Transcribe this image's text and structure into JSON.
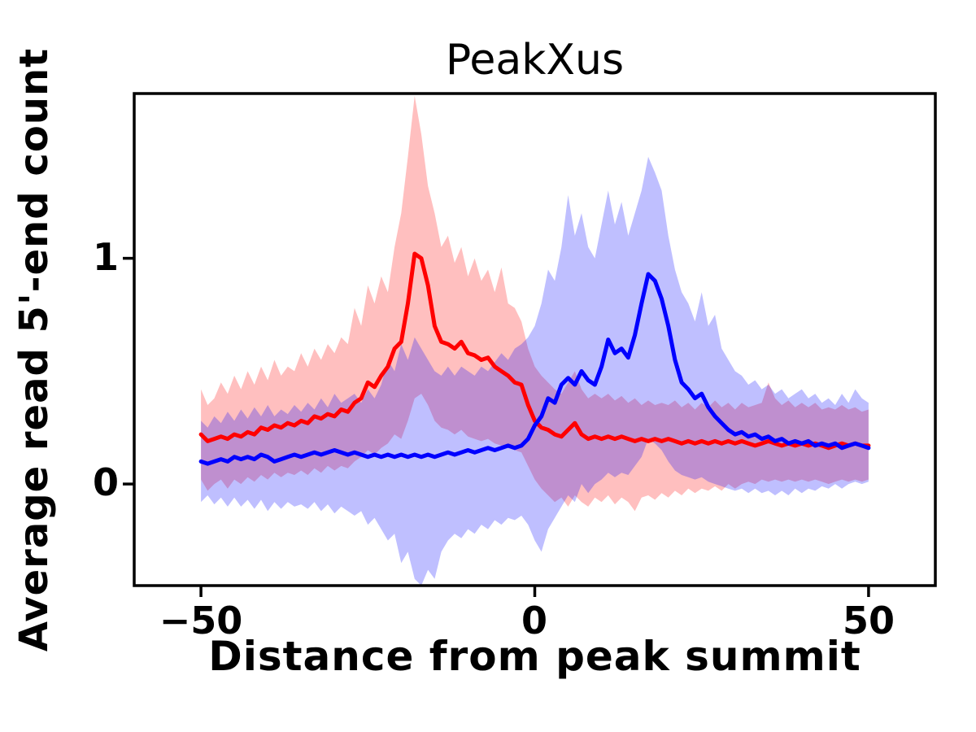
{
  "figure": {
    "background": "#ffffff",
    "axes_color": "#000000"
  },
  "chart_data": {
    "type": "line",
    "title": "PeakXus",
    "xlabel": "Distance from peak summit",
    "ylabel": "Average read 5'-end count",
    "xlim": [
      -60,
      60
    ],
    "ylim": [
      -0.45,
      1.73
    ],
    "grid": false,
    "legend": "none",
    "xticks": {
      "values": [
        -50,
        0,
        50
      ],
      "labels": [
        "−50",
        "0",
        "50"
      ]
    },
    "yticks": {
      "values": [
        0,
        1
      ],
      "labels": [
        "0",
        "1"
      ]
    },
    "x": [
      -50,
      -49,
      -48,
      -47,
      -46,
      -45,
      -44,
      -43,
      -42,
      -41,
      -40,
      -39,
      -38,
      -37,
      -36,
      -35,
      -34,
      -33,
      -32,
      -31,
      -30,
      -29,
      -28,
      -27,
      -26,
      -25,
      -24,
      -23,
      -22,
      -21,
      -20,
      -19,
      -18,
      -17,
      -16,
      -15,
      -14,
      -13,
      -12,
      -11,
      -10,
      -9,
      -8,
      -7,
      -6,
      -5,
      -4,
      -3,
      -2,
      -1,
      0,
      1,
      2,
      3,
      4,
      5,
      6,
      7,
      8,
      9,
      10,
      11,
      12,
      13,
      14,
      15,
      16,
      17,
      18,
      19,
      20,
      21,
      22,
      23,
      24,
      25,
      26,
      27,
      28,
      29,
      30,
      31,
      32,
      33,
      34,
      35,
      36,
      37,
      38,
      39,
      40,
      41,
      42,
      43,
      44,
      45,
      46,
      47,
      48,
      49,
      50
    ],
    "series": [
      {
        "name": "red",
        "color": "#ff0000",
        "band_opacity": 0.25,
        "mean": [
          0.22,
          0.19,
          0.2,
          0.21,
          0.2,
          0.22,
          0.21,
          0.23,
          0.22,
          0.25,
          0.24,
          0.26,
          0.25,
          0.27,
          0.26,
          0.28,
          0.27,
          0.3,
          0.29,
          0.31,
          0.3,
          0.33,
          0.32,
          0.36,
          0.38,
          0.45,
          0.43,
          0.48,
          0.52,
          0.6,
          0.63,
          0.8,
          1.02,
          1.0,
          0.88,
          0.7,
          0.63,
          0.62,
          0.6,
          0.63,
          0.58,
          0.57,
          0.55,
          0.56,
          0.52,
          0.5,
          0.48,
          0.45,
          0.44,
          0.35,
          0.28,
          0.25,
          0.24,
          0.22,
          0.21,
          0.24,
          0.27,
          0.22,
          0.2,
          0.21,
          0.2,
          0.21,
          0.2,
          0.21,
          0.2,
          0.19,
          0.2,
          0.19,
          0.2,
          0.19,
          0.2,
          0.19,
          0.18,
          0.19,
          0.18,
          0.19,
          0.18,
          0.19,
          0.18,
          0.19,
          0.18,
          0.19,
          0.18,
          0.17,
          0.18,
          0.19,
          0.18,
          0.17,
          0.18,
          0.17,
          0.18,
          0.17,
          0.18,
          0.17,
          0.16,
          0.17,
          0.18,
          0.17,
          0.18,
          0.17,
          0.17
        ],
        "upper": [
          0.42,
          0.35,
          0.38,
          0.45,
          0.4,
          0.48,
          0.42,
          0.5,
          0.44,
          0.52,
          0.46,
          0.55,
          0.48,
          0.52,
          0.5,
          0.58,
          0.52,
          0.6,
          0.55,
          0.62,
          0.58,
          0.65,
          0.62,
          0.78,
          0.7,
          0.88,
          0.8,
          0.92,
          0.85,
          1.05,
          1.2,
          1.45,
          1.72,
          1.55,
          1.32,
          1.2,
          1.05,
          1.1,
          0.98,
          1.05,
          0.92,
          1.0,
          0.9,
          0.95,
          0.85,
          0.96,
          0.8,
          0.78,
          0.72,
          0.6,
          0.52,
          0.48,
          0.45,
          0.42,
          0.4,
          0.45,
          0.5,
          0.42,
          0.38,
          0.4,
          0.38,
          0.4,
          0.37,
          0.39,
          0.36,
          0.38,
          0.35,
          0.37,
          0.35,
          0.36,
          0.35,
          0.37,
          0.34,
          0.36,
          0.33,
          0.36,
          0.34,
          0.37,
          0.34,
          0.36,
          0.33,
          0.36,
          0.34,
          0.35,
          0.36,
          0.45,
          0.38,
          0.35,
          0.37,
          0.34,
          0.36,
          0.34,
          0.36,
          0.33,
          0.34,
          0.33,
          0.35,
          0.33,
          0.34,
          0.32,
          0.33
        ],
        "lower": [
          0.02,
          -0.03,
          0.0,
          0.02,
          -0.02,
          0.02,
          0.0,
          0.03,
          0.01,
          0.04,
          0.02,
          0.05,
          0.03,
          0.05,
          0.04,
          0.06,
          0.04,
          0.07,
          0.05,
          0.08,
          0.06,
          0.08,
          0.07,
          0.1,
          0.12,
          0.15,
          0.13,
          0.16,
          0.18,
          0.22,
          0.2,
          0.28,
          0.38,
          0.4,
          0.35,
          0.28,
          0.25,
          0.24,
          0.22,
          0.24,
          0.21,
          0.2,
          0.19,
          0.2,
          0.18,
          0.17,
          0.16,
          0.15,
          0.14,
          0.08,
          0.02,
          -0.02,
          -0.05,
          -0.08,
          -0.06,
          -0.1,
          -0.05,
          -0.08,
          -0.1,
          -0.06,
          -0.08,
          -0.05,
          -0.09,
          -0.06,
          -0.08,
          -0.12,
          -0.06,
          -0.05,
          -0.07,
          -0.04,
          -0.06,
          -0.03,
          -0.05,
          -0.02,
          -0.04,
          -0.02,
          -0.03,
          -0.01,
          -0.03,
          0.0,
          -0.02,
          0.0,
          0.01,
          0.0,
          0.02,
          0.01,
          0.02,
          0.01,
          0.02,
          0.01,
          0.02,
          0.01,
          0.02,
          0.01,
          0.0,
          0.01,
          0.02,
          0.01,
          0.02,
          0.01,
          0.02
        ]
      },
      {
        "name": "blue",
        "color": "#0000ff",
        "band_opacity": 0.25,
        "mean": [
          0.1,
          0.09,
          0.1,
          0.11,
          0.1,
          0.12,
          0.11,
          0.12,
          0.11,
          0.13,
          0.12,
          0.1,
          0.11,
          0.12,
          0.13,
          0.12,
          0.13,
          0.14,
          0.13,
          0.14,
          0.15,
          0.14,
          0.13,
          0.14,
          0.13,
          0.12,
          0.13,
          0.12,
          0.13,
          0.12,
          0.13,
          0.12,
          0.13,
          0.12,
          0.13,
          0.12,
          0.13,
          0.14,
          0.13,
          0.14,
          0.15,
          0.14,
          0.15,
          0.16,
          0.15,
          0.16,
          0.17,
          0.16,
          0.17,
          0.2,
          0.26,
          0.3,
          0.38,
          0.36,
          0.44,
          0.47,
          0.44,
          0.5,
          0.46,
          0.44,
          0.52,
          0.64,
          0.58,
          0.6,
          0.56,
          0.66,
          0.8,
          0.93,
          0.9,
          0.82,
          0.7,
          0.55,
          0.45,
          0.42,
          0.38,
          0.4,
          0.34,
          0.3,
          0.27,
          0.24,
          0.22,
          0.23,
          0.21,
          0.22,
          0.2,
          0.21,
          0.19,
          0.2,
          0.18,
          0.19,
          0.18,
          0.19,
          0.17,
          0.18,
          0.17,
          0.18,
          0.16,
          0.17,
          0.18,
          0.17,
          0.16
        ],
        "upper": [
          0.28,
          0.25,
          0.3,
          0.27,
          0.32,
          0.28,
          0.33,
          0.29,
          0.34,
          0.3,
          0.35,
          0.3,
          0.33,
          0.31,
          0.35,
          0.32,
          0.36,
          0.33,
          0.38,
          0.34,
          0.4,
          0.36,
          0.38,
          0.4,
          0.36,
          0.42,
          0.38,
          0.44,
          0.55,
          0.5,
          0.62,
          0.55,
          0.65,
          0.6,
          0.55,
          0.5,
          0.48,
          0.52,
          0.48,
          0.52,
          0.5,
          0.48,
          0.52,
          0.5,
          0.54,
          0.58,
          0.55,
          0.6,
          0.62,
          0.65,
          0.7,
          0.8,
          0.95,
          0.9,
          1.05,
          1.28,
          1.1,
          1.2,
          1.05,
          1.0,
          1.15,
          1.3,
          1.15,
          1.25,
          1.1,
          1.2,
          1.3,
          1.45,
          1.38,
          1.3,
          1.1,
          0.95,
          0.85,
          0.8,
          0.72,
          0.85,
          0.7,
          0.75,
          0.6,
          0.55,
          0.5,
          0.48,
          0.44,
          0.46,
          0.42,
          0.44,
          0.4,
          0.42,
          0.38,
          0.4,
          0.42,
          0.38,
          0.4,
          0.36,
          0.38,
          0.35,
          0.4,
          0.36,
          0.42,
          0.38,
          0.36
        ],
        "lower": [
          -0.08,
          -0.05,
          -0.09,
          -0.06,
          -0.1,
          -0.06,
          -0.1,
          -0.07,
          -0.11,
          -0.07,
          -0.12,
          -0.08,
          -0.11,
          -0.08,
          -0.1,
          -0.09,
          -0.11,
          -0.08,
          -0.12,
          -0.09,
          -0.13,
          -0.1,
          -0.12,
          -0.14,
          -0.12,
          -0.18,
          -0.15,
          -0.2,
          -0.25,
          -0.22,
          -0.35,
          -0.3,
          -0.42,
          -0.45,
          -0.38,
          -0.42,
          -0.3,
          -0.25,
          -0.22,
          -0.24,
          -0.2,
          -0.22,
          -0.18,
          -0.2,
          -0.16,
          -0.18,
          -0.15,
          -0.16,
          -0.14,
          -0.18,
          -0.25,
          -0.3,
          -0.2,
          -0.15,
          -0.1,
          -0.05,
          -0.08,
          0.0,
          -0.04,
          0.0,
          0.02,
          0.05,
          0.03,
          0.05,
          0.04,
          0.08,
          0.12,
          0.2,
          0.18,
          0.15,
          0.1,
          0.06,
          0.04,
          0.03,
          0.02,
          0.03,
          0.01,
          0.0,
          -0.01,
          -0.02,
          -0.03,
          -0.02,
          -0.04,
          -0.02,
          -0.04,
          -0.03,
          -0.05,
          -0.03,
          -0.05,
          -0.02,
          -0.04,
          -0.02,
          -0.03,
          -0.01,
          -0.02,
          0.0,
          -0.02,
          0.0,
          0.01,
          0.0,
          0.01
        ]
      }
    ]
  }
}
